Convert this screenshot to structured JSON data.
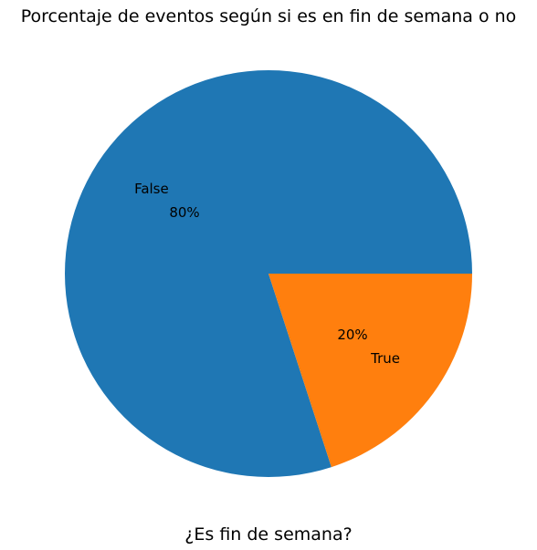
{
  "chart_data": {
    "type": "pie",
    "title": "Porcentaje de eventos según si es en fin de semana o no",
    "xlabel": "¿Es fin de semana?",
    "categories": [
      "False",
      "True"
    ],
    "values": [
      80,
      20
    ],
    "value_labels": [
      "80%",
      "20%"
    ],
    "colors": [
      "#1f77b4",
      "#ff7f0e"
    ],
    "start_angle_deg": 0,
    "direction": "counterclockwise",
    "legend": "none"
  }
}
